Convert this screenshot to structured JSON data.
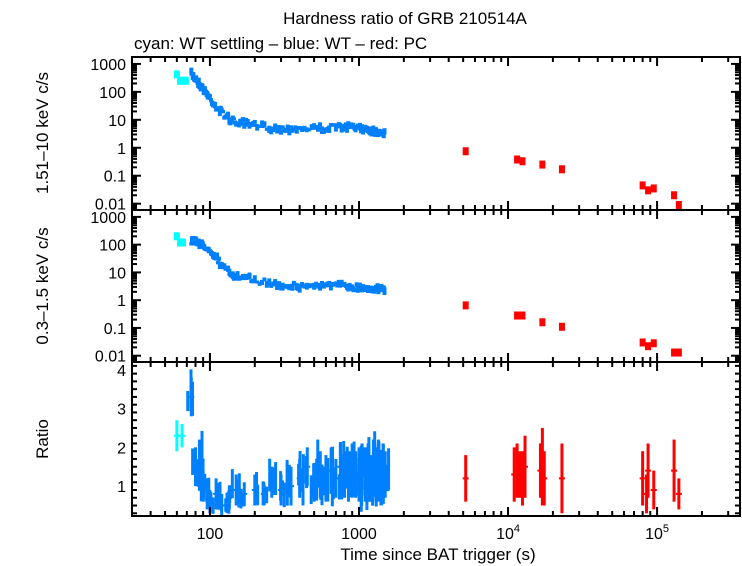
{
  "chart_data": [
    {
      "type": "scatter",
      "panel": "top",
      "title": "Hardness ratio of GRB 210514A",
      "subtitle": "cyan: WT settling – blue: WT – red: PC",
      "ylabel": "1.51–10 keV c/s",
      "xscale": "log",
      "yscale": "log",
      "xlim": [
        30,
        360000
      ],
      "ylim": [
        0.007,
        1500
      ],
      "yticks": [
        {
          "value": 1000,
          "label": "1000"
        },
        {
          "value": 100,
          "label": "100"
        },
        {
          "value": 10,
          "label": "10"
        },
        {
          "value": 1,
          "label": "1"
        },
        {
          "value": 0.1,
          "label": "0.1"
        },
        {
          "value": 0.01,
          "label": "0.01"
        }
      ],
      "series": [
        {
          "name": "WT settling",
          "color": "#00ffff",
          "points": [
            [
              60,
              420
            ],
            [
              63,
              250
            ],
            [
              66,
              250
            ],
            [
              69,
              250
            ]
          ]
        },
        {
          "name": "WT",
          "color": "#0080ff",
          "segments": [
            [
              [
                75,
                420
              ],
              [
                80,
                300
              ],
              [
                85,
                200
              ],
              [
                90,
                130
              ],
              [
                95,
                90
              ],
              [
                100,
                60
              ],
              [
                110,
                30
              ],
              [
                120,
                18
              ],
              [
                135,
                11
              ],
              [
                150,
                8
              ],
              [
                170,
                7
              ],
              [
                200,
                6
              ],
              [
                250,
                5.5
              ],
              [
                300,
                4.5
              ],
              [
                350,
                5
              ],
              [
                400,
                5
              ],
              [
                500,
                5
              ],
              [
                600,
                5
              ],
              [
                700,
                5.5
              ],
              [
                800,
                5.5
              ],
              [
                900,
                5.5
              ],
              [
                1000,
                5
              ],
              [
                1100,
                5
              ],
              [
                1200,
                4.5
              ],
              [
                1300,
                4
              ],
              [
                1400,
                3.8
              ],
              [
                1500,
                3.5
              ]
            ]
          ]
        },
        {
          "name": "PC",
          "color": "#ff0000",
          "points": [
            [
              5200,
              0.75
            ],
            [
              11500,
              0.38
            ],
            [
              12500,
              0.33
            ],
            [
              17000,
              0.25
            ],
            [
              23000,
              0.17
            ],
            [
              80000,
              0.045
            ],
            [
              87000,
              0.03
            ],
            [
              95000,
              0.035
            ],
            [
              130000,
              0.02
            ],
            [
              140000,
              0.009
            ]
          ]
        }
      ]
    },
    {
      "type": "scatter",
      "panel": "middle",
      "ylabel": "0.3–1.5 keV c/s",
      "xscale": "log",
      "yscale": "log",
      "xlim": [
        30,
        360000
      ],
      "ylim": [
        0.007,
        1500
      ],
      "yticks": [
        {
          "value": 1000,
          "label": "1000"
        },
        {
          "value": 100,
          "label": "100"
        },
        {
          "value": 10,
          "label": "10"
        },
        {
          "value": 1,
          "label": "1"
        },
        {
          "value": 0.1,
          "label": "0.1"
        },
        {
          "value": 0.01,
          "label": "0.01"
        }
      ],
      "series": [
        {
          "name": "WT settling",
          "color": "#00ffff",
          "points": [
            [
              60,
              200
            ],
            [
              63,
              120
            ],
            [
              66,
              120
            ]
          ]
        },
        {
          "name": "WT",
          "color": "#0080ff",
          "segments": [
            [
              [
                75,
                130
              ],
              [
                80,
                150
              ],
              [
                85,
                110
              ],
              [
                90,
                90
              ],
              [
                100,
                70
              ],
              [
                110,
                35
              ],
              [
                120,
                18
              ],
              [
                135,
                10
              ],
              [
                150,
                7
              ],
              [
                170,
                6
              ],
              [
                200,
                5.5
              ],
              [
                250,
                4
              ],
              [
                300,
                3.5
              ],
              [
                350,
                3.5
              ],
              [
                400,
                3
              ],
              [
                500,
                3.5
              ],
              [
                600,
                3.5
              ],
              [
                700,
                3.5
              ],
              [
                800,
                3.2
              ],
              [
                900,
                3
              ],
              [
                1000,
                3
              ],
              [
                1100,
                2.8
              ],
              [
                1200,
                2.8
              ],
              [
                1300,
                2.6
              ],
              [
                1400,
                2.5
              ],
              [
                1500,
                2.6
              ]
            ]
          ]
        },
        {
          "name": "PC",
          "color": "#ff0000",
          "points": [
            [
              5200,
              0.65
            ],
            [
              11500,
              0.28
            ],
            [
              12500,
              0.28
            ],
            [
              17000,
              0.16
            ],
            [
              23000,
              0.11
            ],
            [
              80000,
              0.03
            ],
            [
              87000,
              0.022
            ],
            [
              95000,
              0.028
            ],
            [
              130000,
              0.013
            ],
            [
              140000,
              0.013
            ]
          ]
        }
      ]
    },
    {
      "type": "scatter",
      "panel": "bottom",
      "ylabel": "Ratio",
      "xlabel": "Time since BAT trigger (s)",
      "xscale": "log",
      "yscale": "linear",
      "xlim": [
        30,
        360000
      ],
      "ylim": [
        0.23,
        4.2
      ],
      "xticks": [
        {
          "value": 100,
          "label": "100"
        },
        {
          "value": 1000,
          "label": "1000"
        },
        {
          "value": 10000,
          "label": "10",
          "sup": "4"
        },
        {
          "value": 100000,
          "label": "10",
          "sup": "5"
        }
      ],
      "yticks": [
        {
          "value": 4,
          "label": "4"
        },
        {
          "value": 3,
          "label": "3"
        },
        {
          "value": 2,
          "label": "2"
        },
        {
          "value": 1,
          "label": "1"
        }
      ],
      "series": [
        {
          "name": "WT settling",
          "color": "#00ffff",
          "points": [
            [
              60,
              2.3,
              0.4
            ],
            [
              65,
              2.3,
              0.3
            ]
          ]
        },
        {
          "name": "WT",
          "color": "#0080ff",
          "points": [
            [
              75,
              3.3,
              0.5
            ],
            [
              80,
              1.5,
              0.5
            ],
            [
              85,
              1.6,
              0.6
            ],
            [
              90,
              1.0,
              0.4
            ],
            [
              95,
              0.9,
              0.3
            ],
            [
              100,
              0.6,
              0.3
            ],
            [
              110,
              0.8,
              0.4
            ],
            [
              120,
              0.5,
              0.3
            ],
            [
              135,
              0.7,
              0.3
            ],
            [
              150,
              0.9,
              0.4
            ],
            [
              170,
              0.8,
              0.3
            ],
            [
              200,
              0.9,
              0.4
            ],
            [
              230,
              0.8,
              0.3
            ],
            [
              260,
              1.1,
              0.4
            ],
            [
              300,
              0.9,
              0.4
            ],
            [
              350,
              1.0,
              0.5
            ],
            [
              400,
              1.2,
              0.5
            ],
            [
              450,
              1.5,
              0.5
            ],
            [
              500,
              1.1,
              0.5
            ],
            [
              550,
              1.3,
              0.6
            ],
            [
              600,
              1.2,
              0.6
            ],
            [
              650,
              1.4,
              0.6
            ],
            [
              700,
              1.2,
              0.5
            ],
            [
              750,
              1.5,
              0.6
            ],
            [
              800,
              1.3,
              0.6
            ],
            [
              850,
              1.2,
              0.6
            ],
            [
              900,
              1.4,
              0.7
            ],
            [
              950,
              1.3,
              0.6
            ],
            [
              1000,
              1.3,
              0.7
            ],
            [
              1050,
              1.5,
              0.6
            ],
            [
              1100,
              1.3,
              0.7
            ],
            [
              1150,
              1.4,
              0.7
            ],
            [
              1200,
              1.2,
              0.6
            ],
            [
              1250,
              1.5,
              0.7
            ],
            [
              1300,
              1.3,
              0.7
            ],
            [
              1350,
              1.4,
              0.8
            ],
            [
              1400,
              1.2,
              0.6
            ],
            [
              1450,
              1.4,
              0.7
            ],
            [
              1500,
              1.3,
              0.6
            ]
          ]
        },
        {
          "name": "PC",
          "color": "#ff0000",
          "points": [
            [
              5200,
              1.2,
              0.6
            ],
            [
              11000,
              1.3,
              0.7
            ],
            [
              11500,
              1.4,
              0.7
            ],
            [
              12000,
              1.3,
              0.6
            ],
            [
              12500,
              1.2,
              0.7
            ],
            [
              13000,
              1.5,
              0.8
            ],
            [
              16500,
              1.4,
              0.7
            ],
            [
              17000,
              1.5,
              1.0
            ],
            [
              17500,
              1.2,
              0.7
            ],
            [
              23000,
              1.2,
              0.9
            ],
            [
              80000,
              1.2,
              0.7
            ],
            [
              85000,
              0.8,
              0.5
            ],
            [
              87000,
              1.4,
              0.7
            ],
            [
              95000,
              0.9,
              0.5
            ],
            [
              130000,
              1.4,
              0.8
            ],
            [
              140000,
              0.8,
              0.4
            ]
          ]
        }
      ]
    }
  ],
  "title": "Hardness ratio of GRB 210514A",
  "subtitle": "cyan: WT settling – blue: WT – red: PC",
  "xlabel": "Time since BAT trigger (s)"
}
